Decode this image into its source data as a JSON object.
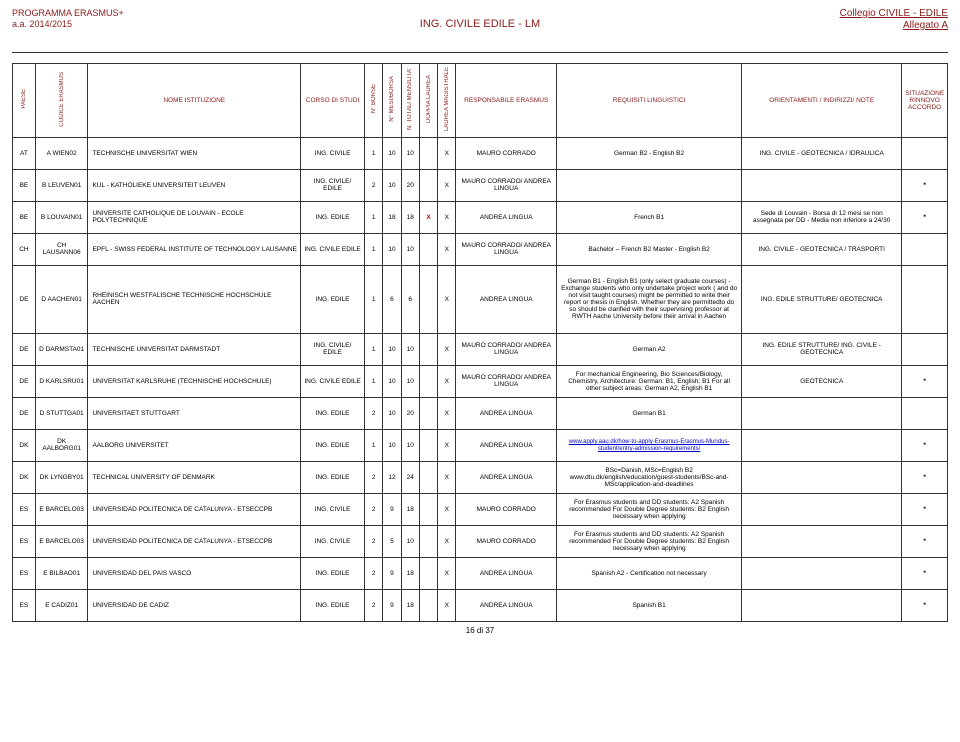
{
  "header": {
    "program": "PROGRAMMA ERASMUS+",
    "year": "a.a. 2014/2015",
    "centerTitle": "ING. CIVILE EDILE - LM",
    "rightLine1": "Collegio CIVILE - EDILE",
    "rightLine2": "Allegato A"
  },
  "columns": {
    "paese": "PAESE",
    "codice": "CODICE ERASMUS",
    "nome": "NOME ISTITUZIONE",
    "corso": "CORSO DI STUDI",
    "borse": "N° BORSE",
    "mesi": "N° MESI/BORSA",
    "tot": "N. TOTALI MENSILITA'",
    "doppia": "DOPPIA LAUREA",
    "mag": "LAUREA MAGISTRALE",
    "resp": "RESPONSABILE ERASMUS",
    "req": "REQUISITI LINGUISTICI",
    "orient": "ORIENTAMENTI / INDIRIZZI/ NOTE",
    "sit": "SITUAZIONE RINNOVO ACCORDO"
  },
  "rows": [
    {
      "paese": "AT",
      "codice": "A WIEN02",
      "nome": "TECHNISCHE UNIVERSITAT WIEN",
      "corso": "ING. CIVILE",
      "borse": "1",
      "mesi": "10",
      "tot": "10",
      "doppia": "",
      "mag": "X",
      "resp": "MAURO CORRADO",
      "req": "German B2 - English B2",
      "orient": "ING. CIVILE - GEOTECNICA / IDRAULICA",
      "sit": ""
    },
    {
      "paese": "BE",
      "codice": "B LEUVEN01",
      "nome": "KUL - KATHOLIEKE UNIVERSITEIT LEUVEN",
      "corso": "ING. CIVILE/ EDILE",
      "borse": "2",
      "mesi": "10",
      "tot": "20",
      "doppia": "",
      "mag": "X",
      "resp": "MAURO CORRADO/ ANDREA LINGUA",
      "req": "",
      "orient": "",
      "sit": "*"
    },
    {
      "paese": "BE",
      "codice": "B LOUVAIN01",
      "nome": "UNIVERSITE CATHOLIQUE DE LOUVAIN - ECOLE POLYTECHNIQUE",
      "corso": "ING. EDILE",
      "borse": "1",
      "mesi": "18",
      "tot": "18",
      "doppia": "X",
      "doppiaRed": true,
      "mag": "X",
      "resp": "ANDREA LINGUA",
      "req": "French B1",
      "orient": "Sede di Louvain - Borsa di 12 mesi se non assegnata per DD - Media non inferiore a 24/30",
      "sit": "*"
    },
    {
      "paese": "CH",
      "codice": "CH LAUSANN06",
      "nome": "EPFL - SWISS FEDERAL INSTITUTE OF TECHNOLOGY LAUSANNE",
      "corso": "ING. CIVILE EDILE",
      "borse": "1",
      "mesi": "10",
      "tot": "10",
      "doppia": "",
      "mag": "X",
      "resp": "MAURO CORRADO/ ANDREA LINGUA",
      "req": "Bachelor – French B2  Master - English B2",
      "orient": "ING. CIVILE - GEOTECNICA / TRASPORTI",
      "sit": ""
    },
    {
      "paese": "DE",
      "codice": "D AACHEN01",
      "nome": "RHEINISCH WESTFALISCHE TECHNISCHE HOCHSCHULE AACHEN",
      "corso": "ING. EDILE",
      "borse": "1",
      "mesi": "6",
      "tot": "6",
      "doppia": "",
      "mag": "X",
      "resp": "ANDREA LINGUA",
      "req": "German B1 - English B1 (only select graduate courses) - Exchange students who only undertake project work ( and do not visit taught courses) might be permitted to write their report or thesis in English. Whether they are permittedto do so should be clarified with their supervising professor at RWTH Aache University before their arrival in Aachen",
      "orient": "ING. EDILE STRUTTURE/ GEOTECNICA",
      "sit": "",
      "tall": true
    },
    {
      "paese": "DE",
      "codice": "D DARMSTA01",
      "nome": "TECHNISCHE UNIVERSITAT DARMSTADT",
      "corso": "ING. CIVILE/ EDILE",
      "borse": "1",
      "mesi": "10",
      "tot": "10",
      "doppia": "",
      "mag": "X",
      "resp": "MAURO CORRADO/ ANDREA LINGUA",
      "req": "German A2",
      "orient": "ING. EDILE STRUTTURE/ ING. CIVILE - GEOTECNICA",
      "sit": ""
    },
    {
      "paese": "DE",
      "codice": "D KARLSRU01",
      "nome": "UNIVERSITAT KARLSRUHE (TECHNISCHE HOCHSCHULE)",
      "corso": "ING. CIVILE EDILE",
      "borse": "1",
      "mesi": "10",
      "tot": "10",
      "doppia": "",
      "mag": "X",
      "resp": "MAURO CORRADO/ ANDREA LINGUA",
      "req": "For mechanical Engineering, Bio Sciences/Biology, Chemistry, Architecture:  German: B1, English: B1  For all other subject areas: German A2, English B1",
      "orient": "GEOTECNICA",
      "sit": "*"
    },
    {
      "paese": "DE",
      "codice": "D STUTTGA01",
      "nome": "UNIVERSITAET STUTTGART",
      "corso": "ING. EDILE",
      "borse": "2",
      "mesi": "10",
      "tot": "20",
      "doppia": "",
      "mag": "X",
      "resp": "ANDREA LINGUA",
      "req": "German B1",
      "orient": "",
      "sit": ""
    },
    {
      "paese": "DK",
      "codice": "DK AALBORG01",
      "nome": "AALBORG UNIVERSITET",
      "corso": "ING. EDILE",
      "borse": "1",
      "mesi": "10",
      "tot": "10",
      "doppia": "",
      "mag": "X",
      "resp": "ANDREA LINGUA",
      "req": "",
      "reqLink": "www.apply.aau.dk/how-to-apply-Erasmus-Erasmus-Mundus-student/entry-admission-requirements/",
      "orient": "",
      "sit": "*"
    },
    {
      "paese": "DK",
      "codice": "DK LYNGBY01",
      "nome": "TECHNICAL UNIVERSITY OF DENMARK",
      "corso": "ING. EDILE",
      "borse": "2",
      "mesi": "12",
      "tot": "24",
      "doppia": "",
      "mag": "X",
      "resp": "ANDREA LINGUA",
      "req": "BSc=Danish, MSc=English B2 www.dtu.dk/english/education/guest-students/BSc-and-MSc/application-and-deadlines",
      "orient": "",
      "sit": "*"
    },
    {
      "paese": "ES",
      "codice": "E BARCELO03",
      "nome": "UNIVERSIDAD POLITECNICA DE CATALUNYA - ETSECCPB",
      "corso": "ING. CIVILE",
      "borse": "2",
      "mesi": "9",
      "tot": "18",
      "doppia": "",
      "mag": "X",
      "resp": "MAURO CORRADO",
      "req": "For Erasmus students and DD students: A2 Spanish recommended For Double Degree students: B2 English necessary when applying",
      "orient": "",
      "sit": "*"
    },
    {
      "paese": "ES",
      "codice": "E BARCELO03",
      "nome": "UNIVERSIDAD POLITECNICA DE CATALUNYA - ETSECCPB",
      "corso": "ING. CIVILE",
      "borse": "2",
      "mesi": "5",
      "tot": "10",
      "doppia": "",
      "mag": "X",
      "resp": "MAURO CORRADO",
      "req": "For Erasmus students and DD students: A2 Spanish recommended For Double Degree students: B2 English necessary when applying",
      "orient": "",
      "sit": "*"
    },
    {
      "paese": "ES",
      "codice": "E BILBAO01",
      "nome": "UNIVERSIDAD DEL PAIS VASCO",
      "corso": "ING. EDILE",
      "borse": "2",
      "mesi": "9",
      "tot": "18",
      "doppia": "",
      "mag": "X",
      "resp": "ANDREA LINGUA",
      "req": "Spanish A2 - Certification not necessary",
      "orient": "",
      "sit": "*"
    },
    {
      "paese": "ES",
      "codice": "E CADIZ01",
      "nome": "UNIVERSIDAD DE CADIZ",
      "corso": "ING. EDILE",
      "borse": "2",
      "mesi": "9",
      "tot": "18",
      "doppia": "",
      "mag": "X",
      "resp": "ANDREA LINGUA",
      "req": "Spanish B1",
      "orient": "",
      "sit": "*"
    }
  ],
  "footer": {
    "pageinfo": "16 di 37"
  }
}
